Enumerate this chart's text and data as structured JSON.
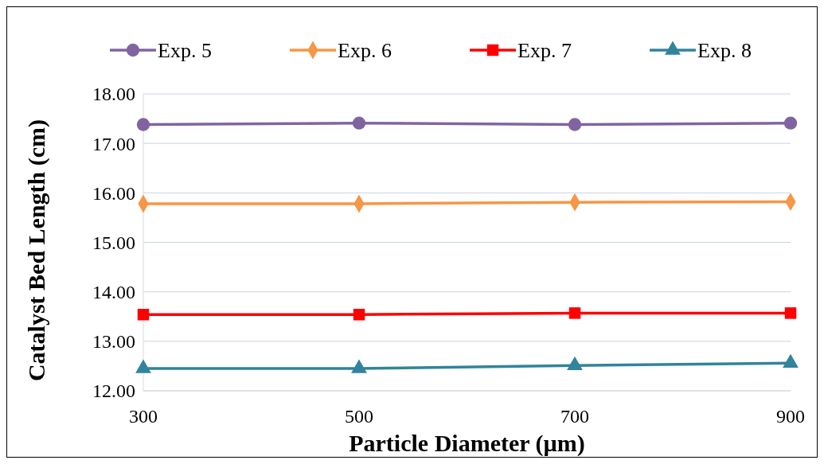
{
  "chart_data": {
    "type": "line",
    "xlabel": "Particle Diameter (µm)",
    "ylabel": "Catalyst Bed Length (cm)",
    "x": [
      300,
      500,
      700,
      900
    ],
    "series": [
      {
        "name": "Exp. 5",
        "color": "#8064a2",
        "marker": "circle",
        "values": [
          17.38,
          17.41,
          17.38,
          17.41
        ]
      },
      {
        "name": "Exp. 6",
        "color": "#f79646",
        "marker": "diamond",
        "values": [
          15.78,
          15.78,
          15.81,
          15.82
        ]
      },
      {
        "name": "Exp. 7",
        "color": "#ff0000",
        "marker": "square",
        "values": [
          13.54,
          13.54,
          13.57,
          13.57
        ]
      },
      {
        "name": "Exp. 8",
        "color": "#31849b",
        "marker": "triangle",
        "values": [
          12.45,
          12.45,
          12.51,
          12.56
        ]
      }
    ],
    "xlim": [
      300,
      900
    ],
    "xticks": [
      300,
      500,
      700,
      900
    ],
    "ylim": [
      12,
      18
    ],
    "yticks": [
      {
        "value": 12,
        "label": "12.00"
      },
      {
        "value": 13,
        "label": "13.00"
      },
      {
        "value": 14,
        "label": "14.00"
      },
      {
        "value": 15,
        "label": "15.00"
      },
      {
        "value": 16,
        "label": "16.00"
      },
      {
        "value": 17,
        "label": "17.00"
      },
      {
        "value": 18,
        "label": "18.00"
      }
    ],
    "grid": "y",
    "legend": "top",
    "line_style": "solid"
  }
}
